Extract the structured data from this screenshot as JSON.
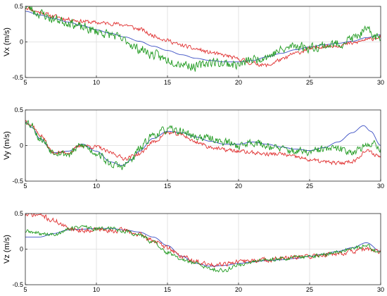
{
  "chart_data": [
    {
      "type": "line",
      "ylabel": "Vx (m/s)",
      "xlim": [
        5,
        30
      ],
      "ylim": [
        -0.5,
        0.5
      ],
      "xticks": [
        5,
        10,
        15,
        20,
        25,
        30
      ],
      "yticks": [
        -0.5,
        0,
        0.5
      ],
      "grid": true,
      "series": [
        {
          "color": "#3b4fc4",
          "smooth": true,
          "x": [
            5,
            6,
            7,
            8,
            9,
            10,
            11,
            12,
            13,
            14,
            15,
            16,
            17,
            18,
            19,
            20,
            21,
            22,
            23,
            24,
            25,
            26,
            27,
            28,
            29,
            30
          ],
          "y": [
            0.43,
            0.38,
            0.33,
            0.28,
            0.23,
            0.17,
            0.12,
            0.07,
            0.01,
            -0.06,
            -0.12,
            -0.18,
            -0.23,
            -0.26,
            -0.28,
            -0.28,
            -0.26,
            -0.21,
            -0.16,
            -0.11,
            -0.07,
            -0.04,
            -0.02,
            0.01,
            0.06,
            0.1
          ]
        },
        {
          "color": "#e03030",
          "noise": 0.025,
          "seed": 11,
          "x": [
            5,
            6,
            7,
            8,
            9,
            10,
            11,
            12,
            13,
            14,
            15,
            16,
            17,
            18,
            19,
            20,
            21,
            22,
            23,
            24,
            25,
            26,
            27,
            28,
            29,
            30
          ],
          "y": [
            0.48,
            0.42,
            0.36,
            0.32,
            0.29,
            0.27,
            0.26,
            0.24,
            0.18,
            0.09,
            0.02,
            -0.05,
            -0.1,
            -0.15,
            -0.19,
            -0.24,
            -0.3,
            -0.33,
            -0.25,
            -0.16,
            -0.1,
            -0.06,
            -0.05,
            -0.02,
            0.03,
            0.07
          ]
        },
        {
          "color": "#1f9a1f",
          "noise": 0.06,
          "seed": 23,
          "x": [
            5,
            6,
            7,
            8,
            9,
            10,
            11,
            12,
            13,
            14,
            15,
            16,
            17,
            18,
            19,
            20,
            21,
            22,
            23,
            24,
            25,
            26,
            27,
            28,
            29,
            30
          ],
          "y": [
            0.5,
            0.4,
            0.32,
            0.28,
            0.2,
            0.15,
            0.1,
            0.02,
            -0.1,
            -0.18,
            -0.25,
            -0.3,
            -0.35,
            -0.28,
            -0.3,
            -0.32,
            -0.25,
            -0.2,
            -0.12,
            -0.05,
            -0.08,
            -0.05,
            -0.03,
            0.05,
            0.15,
            0.05
          ]
        }
      ]
    },
    {
      "type": "line",
      "ylabel": "Vy (m/s)",
      "xlim": [
        5,
        30
      ],
      "ylim": [
        -0.5,
        0.5
      ],
      "xticks": [
        5,
        10,
        15,
        20,
        25,
        30
      ],
      "yticks": [
        -0.5,
        0,
        0.5
      ],
      "grid": true,
      "series": [
        {
          "color": "#3b4fc4",
          "smooth": true,
          "x": [
            5,
            5.5,
            6,
            7,
            8,
            9,
            10,
            11,
            11.8,
            12.5,
            13,
            14,
            15,
            16,
            17,
            18,
            19,
            20,
            21,
            22,
            23,
            24,
            25,
            26,
            27,
            28,
            28.8,
            29.3,
            30
          ],
          "y": [
            0.33,
            0.25,
            0.1,
            -0.1,
            -0.08,
            0.02,
            -0.08,
            -0.23,
            -0.28,
            -0.2,
            -0.08,
            0.1,
            0.2,
            0.18,
            0.12,
            0.06,
            0.02,
            0.02,
            0.05,
            0.02,
            -0.02,
            -0.05,
            -0.07,
            -0.03,
            0.05,
            0.18,
            0.28,
            0.2,
            0.0
          ]
        },
        {
          "color": "#e03030",
          "noise": 0.025,
          "seed": 37,
          "x": [
            5,
            5.5,
            6,
            7,
            8,
            9,
            10,
            11,
            12,
            13,
            14,
            15,
            16,
            17,
            18,
            19,
            20,
            21,
            22,
            23,
            24,
            25,
            26,
            27,
            28,
            29,
            30
          ],
          "y": [
            0.35,
            0.28,
            0.15,
            -0.1,
            -0.1,
            0.0,
            -0.02,
            -0.1,
            -0.18,
            -0.12,
            0.05,
            0.18,
            0.15,
            0.05,
            -0.02,
            -0.06,
            -0.08,
            -0.1,
            -0.12,
            -0.12,
            -0.16,
            -0.2,
            -0.23,
            -0.25,
            -0.22,
            -0.08,
            -0.15
          ]
        },
        {
          "color": "#1f9a1f",
          "noise": 0.05,
          "seed": 53,
          "x": [
            5,
            5.5,
            6,
            7,
            8,
            9,
            10,
            11,
            11.8,
            12.5,
            13,
            14,
            15,
            16,
            17,
            18,
            19,
            20,
            21,
            22,
            23,
            24,
            25,
            26,
            27,
            28,
            29,
            29.5,
            30
          ],
          "y": [
            0.36,
            0.28,
            0.1,
            -0.08,
            -0.12,
            0.0,
            -0.1,
            -0.26,
            -0.3,
            -0.2,
            -0.05,
            0.15,
            0.22,
            0.2,
            0.12,
            0.1,
            0.05,
            0.0,
            0.05,
            0.0,
            -0.05,
            -0.08,
            -0.1,
            -0.05,
            -0.05,
            -0.08,
            -0.02,
            0.05,
            -0.05
          ]
        }
      ]
    },
    {
      "type": "line",
      "ylabel": "Vz (m/s)",
      "xlim": [
        5,
        30
      ],
      "ylim": [
        -0.5,
        0.5
      ],
      "xticks": [
        5,
        10,
        15,
        20,
        25,
        30
      ],
      "yticks": [
        -0.5,
        0,
        0.5
      ],
      "grid": true,
      "series": [
        {
          "color": "#3b4fc4",
          "smooth": true,
          "x": [
            5,
            6,
            7,
            8,
            9,
            10,
            11,
            12,
            13,
            14,
            15,
            16,
            17,
            18,
            19,
            20,
            21,
            22,
            23,
            24,
            25,
            26,
            27,
            28,
            29,
            30
          ],
          "y": [
            0.17,
            0.17,
            0.22,
            0.27,
            0.28,
            0.29,
            0.29,
            0.27,
            0.24,
            0.17,
            0.05,
            -0.1,
            -0.2,
            -0.24,
            -0.23,
            -0.2,
            -0.18,
            -0.16,
            -0.15,
            -0.13,
            -0.1,
            -0.07,
            -0.03,
            0.02,
            0.09,
            -0.03
          ]
        },
        {
          "color": "#e03030",
          "noise": 0.03,
          "seed": 71,
          "x": [
            5,
            6,
            7,
            8,
            9,
            10,
            11,
            12,
            13,
            14,
            15,
            16,
            17,
            18,
            19,
            20,
            21,
            22,
            23,
            24,
            25,
            26,
            27,
            28,
            29,
            30
          ],
          "y": [
            0.48,
            0.48,
            0.4,
            0.3,
            0.26,
            0.28,
            0.25,
            0.27,
            0.2,
            0.12,
            0.02,
            -0.1,
            -0.18,
            -0.22,
            -0.2,
            -0.18,
            -0.16,
            -0.15,
            -0.13,
            -0.12,
            -0.1,
            -0.08,
            -0.06,
            -0.03,
            0.0,
            -0.05
          ]
        },
        {
          "color": "#1f9a1f",
          "noise": 0.025,
          "seed": 89,
          "x": [
            5,
            6,
            7,
            8,
            9,
            10,
            11,
            12,
            13,
            14,
            15,
            16,
            17,
            18,
            19,
            20,
            21,
            22,
            23,
            24,
            25,
            26,
            27,
            28,
            29,
            30
          ],
          "y": [
            0.25,
            0.22,
            0.2,
            0.28,
            0.32,
            0.28,
            0.3,
            0.25,
            0.2,
            0.1,
            -0.05,
            -0.15,
            -0.2,
            -0.28,
            -0.3,
            -0.22,
            -0.18,
            -0.15,
            -0.13,
            -0.12,
            -0.1,
            -0.08,
            -0.04,
            0.02,
            0.04,
            -0.06
          ]
        }
      ]
    }
  ]
}
